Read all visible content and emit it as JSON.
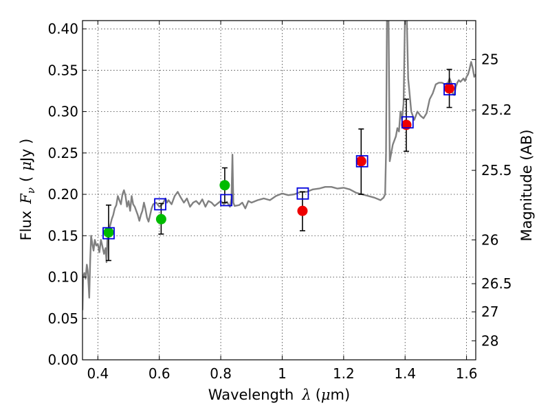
{
  "chart_data": {
    "type": "scatter",
    "xlabel_prefix": "Wavelength",
    "xlabel_symbol": "λ",
    "xlabel_unit_open": "(",
    "xlabel_unit_mu": "μ",
    "xlabel_unit_rest": "m)",
    "ylabel_prefix": "Flux",
    "ylabel_symbol": "F",
    "ylabel_subscript": "ν",
    "ylabel_unit_open": "(",
    "ylabel_unit_mu": "μ",
    "ylabel_unit_rest": "Jy )",
    "y2label": "Magnitude (AB)",
    "xlim": [
      0.35,
      1.63
    ],
    "ylim": [
      0.0,
      0.41
    ],
    "grid": true,
    "x_ticks": [
      0.4,
      0.6,
      0.8,
      1.0,
      1.2,
      1.4,
      1.6
    ],
    "x_tick_labels": [
      "0.4",
      "0.6",
      "0.8",
      "1",
      "1.2",
      "1.4",
      "1.6"
    ],
    "y_ticks": [
      0.0,
      0.05,
      0.1,
      0.15,
      0.2,
      0.25,
      0.3,
      0.35,
      0.4
    ],
    "y_tick_labels": [
      "0.00",
      "0.05",
      "0.10",
      "0.15",
      "0.20",
      "0.25",
      "0.30",
      "0.35",
      "0.40"
    ],
    "y2_ticks": [
      {
        "flux": 0.363,
        "label": "25"
      },
      {
        "flux": 0.302,
        "label": "25.2"
      },
      {
        "flux": 0.229,
        "label": "25.5"
      },
      {
        "flux": 0.145,
        "label": "26"
      },
      {
        "flux": 0.092,
        "label": "26.5"
      },
      {
        "flux": 0.058,
        "label": "27"
      },
      {
        "flux": 0.023,
        "label": "28"
      }
    ],
    "colors": {
      "spectrum": "#808080",
      "model_box": "#0000dd",
      "green_point": "#00bb00",
      "red_point": "#ee0000",
      "errorbar": "#000000"
    },
    "series": [
      {
        "name": "model spectrum",
        "kind": "line",
        "points": [
          [
            0.35,
            0.06
          ],
          [
            0.352,
            0.1
          ],
          [
            0.356,
            0.105
          ],
          [
            0.36,
            0.098
          ],
          [
            0.364,
            0.115
          ],
          [
            0.367,
            0.108
          ],
          [
            0.37,
            0.09
          ],
          [
            0.372,
            0.075
          ],
          [
            0.375,
            0.12
          ],
          [
            0.378,
            0.15
          ],
          [
            0.382,
            0.14
          ],
          [
            0.386,
            0.132
          ],
          [
            0.39,
            0.145
          ],
          [
            0.395,
            0.138
          ],
          [
            0.4,
            0.14
          ],
          [
            0.405,
            0.13
          ],
          [
            0.41,
            0.145
          ],
          [
            0.415,
            0.137
          ],
          [
            0.42,
            0.128
          ],
          [
            0.425,
            0.135
          ],
          [
            0.428,
            0.118
          ],
          [
            0.431,
            0.145
          ],
          [
            0.435,
            0.155
          ],
          [
            0.44,
            0.162
          ],
          [
            0.445,
            0.17
          ],
          [
            0.45,
            0.175
          ],
          [
            0.455,
            0.183
          ],
          [
            0.46,
            0.187
          ],
          [
            0.465,
            0.198
          ],
          [
            0.47,
            0.193
          ],
          [
            0.475,
            0.188
          ],
          [
            0.48,
            0.2
          ],
          [
            0.485,
            0.205
          ],
          [
            0.49,
            0.198
          ],
          [
            0.495,
            0.185
          ],
          [
            0.5,
            0.192
          ],
          [
            0.505,
            0.18
          ],
          [
            0.51,
            0.198
          ],
          [
            0.515,
            0.188
          ],
          [
            0.52,
            0.185
          ],
          [
            0.525,
            0.18
          ],
          [
            0.53,
            0.175
          ],
          [
            0.535,
            0.168
          ],
          [
            0.54,
            0.175
          ],
          [
            0.545,
            0.18
          ],
          [
            0.55,
            0.19
          ],
          [
            0.555,
            0.182
          ],
          [
            0.56,
            0.172
          ],
          [
            0.565,
            0.167
          ],
          [
            0.57,
            0.175
          ],
          [
            0.575,
            0.183
          ],
          [
            0.58,
            0.188
          ],
          [
            0.59,
            0.19
          ],
          [
            0.6,
            0.185
          ],
          [
            0.61,
            0.188
          ],
          [
            0.62,
            0.195
          ],
          [
            0.625,
            0.19
          ],
          [
            0.63,
            0.193
          ],
          [
            0.64,
            0.188
          ],
          [
            0.65,
            0.198
          ],
          [
            0.66,
            0.203
          ],
          [
            0.67,
            0.196
          ],
          [
            0.68,
            0.19
          ],
          [
            0.69,
            0.195
          ],
          [
            0.7,
            0.185
          ],
          [
            0.71,
            0.19
          ],
          [
            0.72,
            0.192
          ],
          [
            0.73,
            0.188
          ],
          [
            0.74,
            0.194
          ],
          [
            0.75,
            0.185
          ],
          [
            0.76,
            0.192
          ],
          [
            0.77,
            0.19
          ],
          [
            0.78,
            0.186
          ],
          [
            0.79,
            0.189
          ],
          [
            0.8,
            0.192
          ],
          [
            0.81,
            0.188
          ],
          [
            0.82,
            0.191
          ],
          [
            0.83,
            0.185
          ],
          [
            0.835,
            0.195
          ],
          [
            0.838,
            0.248
          ],
          [
            0.841,
            0.19
          ],
          [
            0.845,
            0.186
          ],
          [
            0.86,
            0.187
          ],
          [
            0.87,
            0.19
          ],
          [
            0.88,
            0.183
          ],
          [
            0.89,
            0.192
          ],
          [
            0.9,
            0.19
          ],
          [
            0.92,
            0.193
          ],
          [
            0.94,
            0.195
          ],
          [
            0.96,
            0.193
          ],
          [
            0.98,
            0.198
          ],
          [
            1.0,
            0.201
          ],
          [
            1.02,
            0.199
          ],
          [
            1.04,
            0.2
          ],
          [
            1.06,
            0.203
          ],
          [
            1.08,
            0.203
          ],
          [
            1.1,
            0.206
          ],
          [
            1.12,
            0.207
          ],
          [
            1.14,
            0.209
          ],
          [
            1.16,
            0.209
          ],
          [
            1.18,
            0.207
          ],
          [
            1.2,
            0.208
          ],
          [
            1.22,
            0.206
          ],
          [
            1.24,
            0.202
          ],
          [
            1.26,
            0.2
          ],
          [
            1.28,
            0.198
          ],
          [
            1.3,
            0.196
          ],
          [
            1.32,
            0.193
          ],
          [
            1.33,
            0.196
          ],
          [
            1.335,
            0.2
          ],
          [
            1.338,
            0.25
          ],
          [
            1.341,
            0.42
          ],
          [
            1.346,
            0.42
          ],
          [
            1.35,
            0.24
          ],
          [
            1.36,
            0.26
          ],
          [
            1.37,
            0.27
          ],
          [
            1.375,
            0.28
          ],
          [
            1.38,
            0.276
          ],
          [
            1.385,
            0.3
          ],
          [
            1.39,
            0.29
          ],
          [
            1.395,
            0.31
          ],
          [
            1.4,
            0.42
          ],
          [
            1.405,
            0.42
          ],
          [
            1.41,
            0.34
          ],
          [
            1.42,
            0.3
          ],
          [
            1.43,
            0.29
          ],
          [
            1.44,
            0.3
          ],
          [
            1.45,
            0.295
          ],
          [
            1.46,
            0.292
          ],
          [
            1.47,
            0.298
          ],
          [
            1.48,
            0.315
          ],
          [
            1.49,
            0.322
          ],
          [
            1.5,
            0.333
          ],
          [
            1.51,
            0.335
          ],
          [
            1.52,
            0.335
          ],
          [
            1.53,
            0.333
          ],
          [
            1.54,
            0.335
          ],
          [
            1.545,
            0.34
          ],
          [
            1.55,
            0.335
          ],
          [
            1.555,
            0.322
          ],
          [
            1.56,
            0.32
          ],
          [
            1.565,
            0.33
          ],
          [
            1.57,
            0.335
          ],
          [
            1.575,
            0.338
          ],
          [
            1.58,
            0.336
          ],
          [
            1.585,
            0.338
          ],
          [
            1.59,
            0.34
          ],
          [
            1.595,
            0.337
          ],
          [
            1.6,
            0.342
          ],
          [
            1.605,
            0.345
          ],
          [
            1.61,
            0.352
          ],
          [
            1.615,
            0.36
          ],
          [
            1.62,
            0.353
          ],
          [
            1.625,
            0.342
          ],
          [
            1.63,
            0.345
          ]
        ]
      },
      {
        "name": "model photometry",
        "kind": "open-square",
        "points": [
          [
            0.435,
            0.153
          ],
          [
            0.603,
            0.188
          ],
          [
            0.818,
            0.193
          ],
          [
            1.067,
            0.201
          ],
          [
            1.26,
            0.24
          ],
          [
            1.408,
            0.287
          ],
          [
            1.545,
            0.327
          ]
        ]
      },
      {
        "name": "observed (green)",
        "kind": "filled-circle",
        "points": [
          {
            "x": 0.435,
            "y": 0.154,
            "lo": 0.12,
            "hi": 0.187
          },
          {
            "x": 0.606,
            "y": 0.17,
            "lo": 0.152,
            "hi": 0.189
          },
          {
            "x": 0.813,
            "y": 0.211,
            "lo": 0.19,
            "hi": 0.232
          }
        ]
      },
      {
        "name": "observed (red)",
        "kind": "filled-circle",
        "points": [
          {
            "x": 1.066,
            "y": 0.18,
            "lo": 0.156,
            "hi": 0.203
          },
          {
            "x": 1.257,
            "y": 0.24,
            "lo": 0.2,
            "hi": 0.279
          },
          {
            "x": 1.404,
            "y": 0.284,
            "lo": 0.252,
            "hi": 0.315
          },
          {
            "x": 1.544,
            "y": 0.328,
            "lo": 0.305,
            "hi": 0.351
          }
        ]
      }
    ]
  }
}
